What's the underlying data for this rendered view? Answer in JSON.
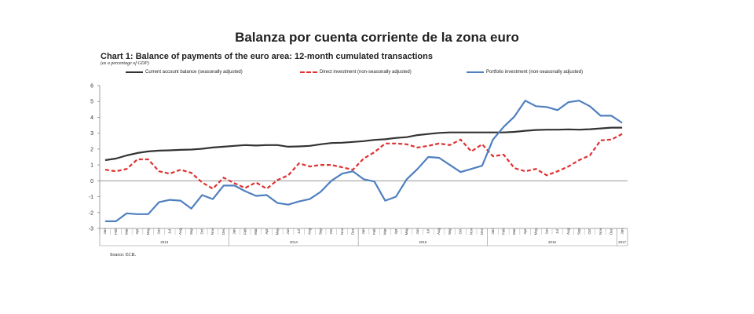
{
  "header": {
    "title": "Balanza por cuenta corriente de la zona euro"
  },
  "chart_data": {
    "type": "line",
    "title": "Chart 1: Balance of payments of the euro area: 12-month cumulated transactions",
    "unit_note": "(as a percentage of GDP)",
    "source": "Source: ECB.",
    "ylim": [
      -3,
      6
    ],
    "yticks": [
      -3,
      -2,
      -1,
      0,
      1,
      2,
      3,
      4,
      5,
      6
    ],
    "grid": false,
    "legend_position": "top",
    "x": [
      "Jan",
      "Feb",
      "Mar",
      "Apr",
      "May",
      "Jun",
      "Jul",
      "Aug",
      "Sep",
      "Oct",
      "Nov",
      "Dec",
      "Jan",
      "Feb",
      "Mar",
      "Apr",
      "May",
      "Jun",
      "Jul",
      "Aug",
      "Sep",
      "Oct",
      "Nov",
      "Dec",
      "Jan",
      "Feb",
      "Mar",
      "Apr",
      "May",
      "Jun",
      "Jul",
      "Aug",
      "Sep",
      "Oct",
      "Nov",
      "Dec",
      "Jan",
      "Feb",
      "Mar",
      "Apr",
      "May",
      "Jun",
      "Jul",
      "Aug",
      "Sep",
      "Oct",
      "Nov",
      "Dec",
      "Jan"
    ],
    "year_groups": [
      {
        "label": "2013",
        "months": 12
      },
      {
        "label": "2014",
        "months": 12
      },
      {
        "label": "2015",
        "months": 12
      },
      {
        "label": "2016",
        "months": 12
      },
      {
        "label": "2017",
        "months": 1
      }
    ],
    "series": [
      {
        "name": "Current account balance (seasonally adjusted)",
        "color": "#333333",
        "style": "solid",
        "values": [
          1.3,
          1.4,
          1.6,
          1.75,
          1.85,
          1.9,
          1.92,
          1.95,
          1.97,
          2.02,
          2.1,
          2.15,
          2.2,
          2.25,
          2.22,
          2.25,
          2.25,
          2.15,
          2.17,
          2.2,
          2.3,
          2.38,
          2.4,
          2.45,
          2.5,
          2.58,
          2.62,
          2.7,
          2.75,
          2.88,
          2.95,
          3.02,
          3.05,
          3.05,
          3.05,
          3.05,
          3.05,
          3.05,
          3.08,
          3.15,
          3.2,
          3.22,
          3.22,
          3.24,
          3.22,
          3.25,
          3.3,
          3.35,
          3.35
        ]
      },
      {
        "name": "Direct investment (non-seasonally adjusted)",
        "color": "#e03030",
        "style": "dashed",
        "values": [
          0.7,
          0.6,
          0.75,
          1.35,
          1.35,
          0.6,
          0.45,
          0.7,
          0.5,
          -0.1,
          -0.5,
          0.2,
          -0.15,
          -0.45,
          -0.1,
          -0.5,
          0.05,
          0.35,
          1.1,
          0.9,
          1.0,
          1.0,
          0.85,
          0.7,
          1.4,
          1.8,
          2.35,
          2.35,
          2.3,
          2.1,
          2.2,
          2.35,
          2.25,
          2.6,
          1.85,
          2.3,
          1.55,
          1.65,
          0.8,
          0.6,
          0.75,
          0.35,
          0.6,
          0.9,
          1.3,
          1.6,
          2.55,
          2.6,
          2.95
        ]
      },
      {
        "name": "Portfolio investment (non-seasonally adjusted)",
        "color": "#4f7fc0",
        "style": "solid",
        "values": [
          -2.55,
          -2.55,
          -2.05,
          -2.1,
          -2.1,
          -1.35,
          -1.2,
          -1.25,
          -1.75,
          -0.9,
          -1.15,
          -0.3,
          -0.3,
          -0.65,
          -0.95,
          -0.9,
          -1.4,
          -1.5,
          -1.3,
          -1.15,
          -0.7,
          0.0,
          0.45,
          0.6,
          0.1,
          -0.05,
          -1.25,
          -1.0,
          0.1,
          0.75,
          1.5,
          1.45,
          1.0,
          0.55,
          0.75,
          0.95,
          2.6,
          3.4,
          4.05,
          5.05,
          4.7,
          4.65,
          4.45,
          4.95,
          5.05,
          4.7,
          4.1,
          4.1,
          3.65
        ]
      }
    ]
  }
}
